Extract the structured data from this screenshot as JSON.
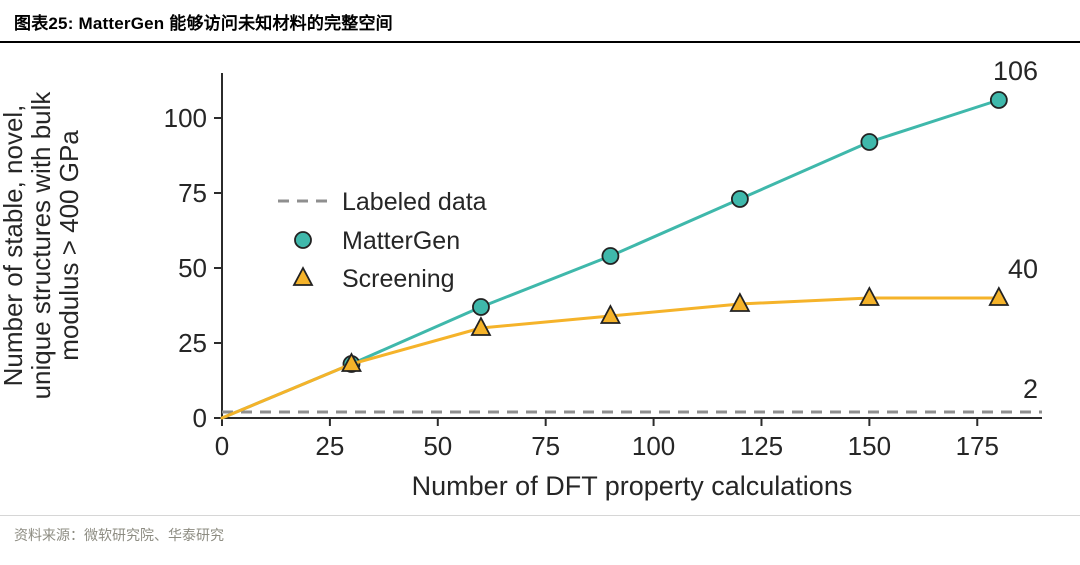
{
  "header": {
    "title": "图表25:  MatterGen 能够访问未知材料的完整空间"
  },
  "footer": {
    "source": "资料来源：微软研究院、华泰研究"
  },
  "chart_data": {
    "type": "line",
    "title": "",
    "xlabel": "Number of DFT property calculations",
    "ylabel_lines": [
      "Number of stable, novel,",
      "unique structures with bulk",
      "modulus > 400 GPa"
    ],
    "xlim": [
      0,
      190
    ],
    "ylim": [
      0,
      115
    ],
    "xticks": [
      0,
      25,
      50,
      75,
      100,
      125,
      150,
      175
    ],
    "yticks": [
      0,
      25,
      50,
      75,
      100
    ],
    "grid": false,
    "colors": {
      "mattergen": "#3fb8ab",
      "screening": "#f5b32a",
      "labeled": "#8f8f8f",
      "axis": "#2b2b2b",
      "text": "#262626"
    },
    "legend": {
      "position": "upper-left-inside",
      "entries": [
        {
          "label": "Labeled data",
          "marker": "dash",
          "color": "#8f8f8f"
        },
        {
          "label": "MatterGen",
          "marker": "circle",
          "color": "#3fb8ab"
        },
        {
          "label": "Screening",
          "marker": "triangle",
          "color": "#f5b32a"
        }
      ]
    },
    "series": [
      {
        "name": "Labeled data",
        "type": "hline",
        "y": 2,
        "color": "#8f8f8f",
        "end_label": "2"
      },
      {
        "name": "MatterGen",
        "type": "line",
        "marker": "circle",
        "color": "#3fb8ab",
        "x": [
          0,
          30,
          60,
          90,
          120,
          150,
          180
        ],
        "y": [
          0,
          18,
          37,
          54,
          73,
          92,
          106
        ],
        "marker_from": 1,
        "end_label": "106"
      },
      {
        "name": "Screening",
        "type": "line",
        "marker": "triangle",
        "color": "#f5b32a",
        "x": [
          0,
          30,
          60,
          90,
          120,
          150,
          180
        ],
        "y": [
          0,
          18,
          30,
          34,
          38,
          40,
          40
        ],
        "marker_from": 1,
        "end_label": "40"
      }
    ]
  }
}
